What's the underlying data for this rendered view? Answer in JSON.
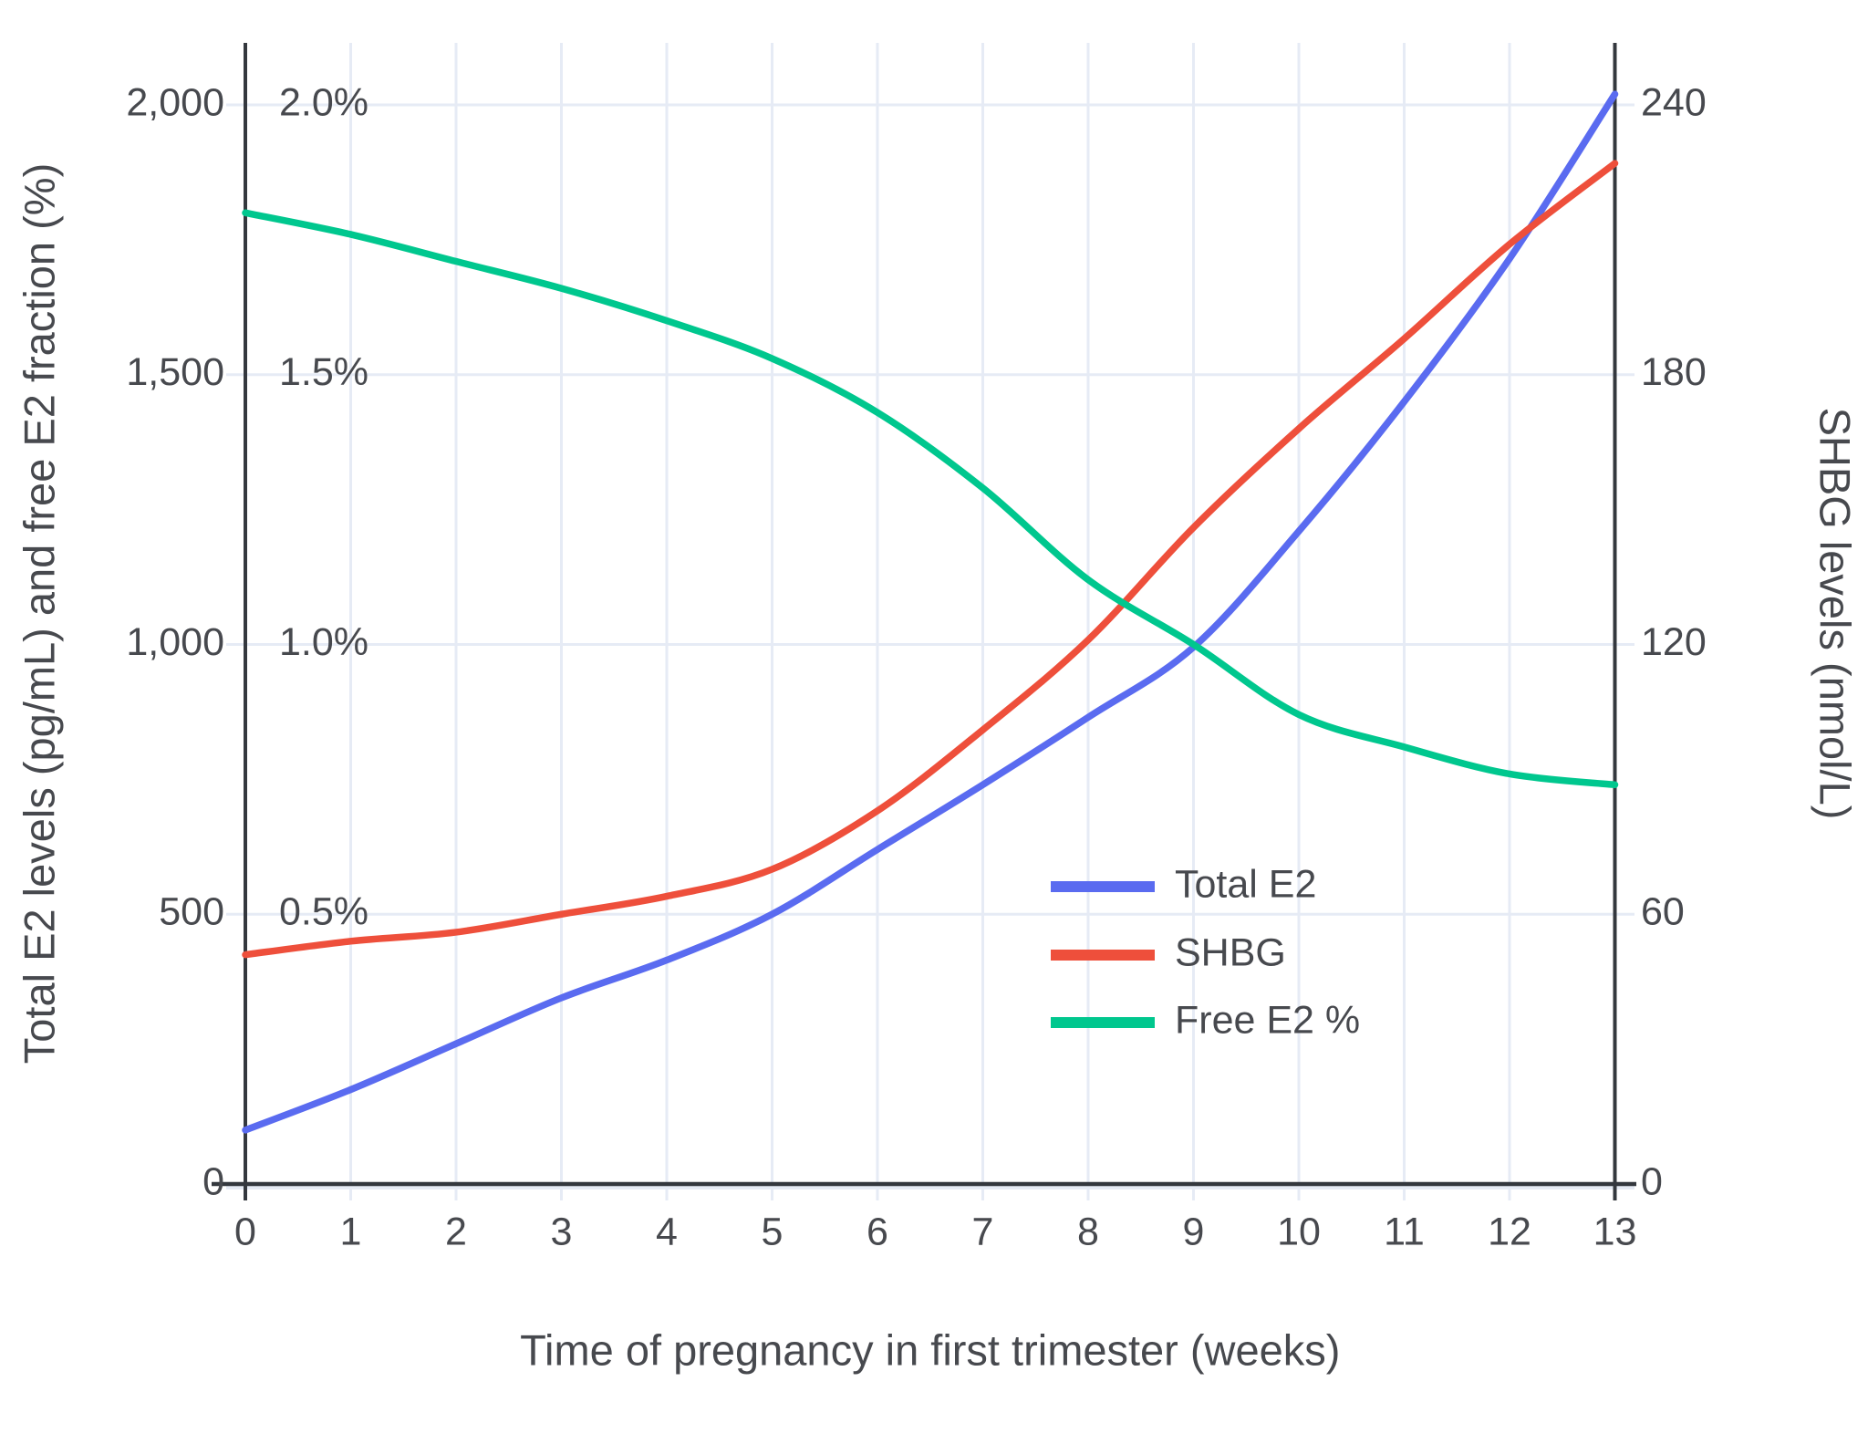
{
  "chart_data": {
    "type": "line",
    "x": [
      0,
      1,
      2,
      3,
      4,
      5,
      6,
      7,
      8,
      9,
      10,
      11,
      12,
      13
    ],
    "x_tick_labels": [
      "0",
      "1",
      "2",
      "3",
      "4",
      "5",
      "6",
      "7",
      "8",
      "9",
      "10",
      "11",
      "12",
      "13"
    ],
    "xlabel": "Time of pregnancy in first trimester (weeks)",
    "ylabel_left": "Total E2 levels (pg/mL) and free E2 fraction (%)",
    "ylabel_right": "SHBG levels (nmol/L)",
    "left_axis": {
      "ticks": [
        0,
        500,
        1000,
        1500,
        2000
      ],
      "tick_labels": [
        "0",
        "500",
        "1,000",
        "1,500",
        "2,000"
      ],
      "range": [
        0,
        2115
      ]
    },
    "percent_inner_labels": {
      "values": [
        500,
        1000,
        1500,
        2000
      ],
      "labels": [
        "0.5%",
        "1.0%",
        "1.5%",
        "2.0%"
      ]
    },
    "right_axis": {
      "ticks": [
        0,
        60,
        120,
        180,
        240
      ],
      "tick_labels": [
        "0",
        "60",
        "120",
        "180",
        "240"
      ],
      "range": [
        0,
        253.8
      ]
    },
    "grid": true,
    "legend_position": "inside-right-middle",
    "series": [
      {
        "name": "Total E2",
        "axis": "left",
        "units": "pg/mL",
        "color": "#5a6bf0",
        "values": [
          100,
          175,
          260,
          345,
          415,
          500,
          620,
          740,
          865,
          995,
          1210,
          1450,
          1715,
          2020
        ]
      },
      {
        "name": "SHBG",
        "axis": "right",
        "units": "nmol/L",
        "color": "#ee4f3b",
        "values": [
          51,
          54,
          56,
          60,
          64,
          70,
          83,
          101,
          121,
          146,
          168,
          188,
          209,
          227
        ]
      },
      {
        "name": "Free E2 %",
        "axis": "percent",
        "units": "%",
        "color": "#00c78e",
        "values": [
          1.8,
          1.76,
          1.71,
          1.66,
          1.6,
          1.53,
          1.43,
          1.29,
          1.12,
          1.0,
          0.87,
          0.81,
          0.76,
          0.74
        ]
      }
    ],
    "legend": {
      "entries": [
        "Total E2",
        "SHBG",
        "Free E2 %"
      ]
    }
  },
  "colors": {
    "background": "#ffffff",
    "gridline": "#e6ebf5",
    "axis_line": "#34383e",
    "text": "#47494e"
  }
}
